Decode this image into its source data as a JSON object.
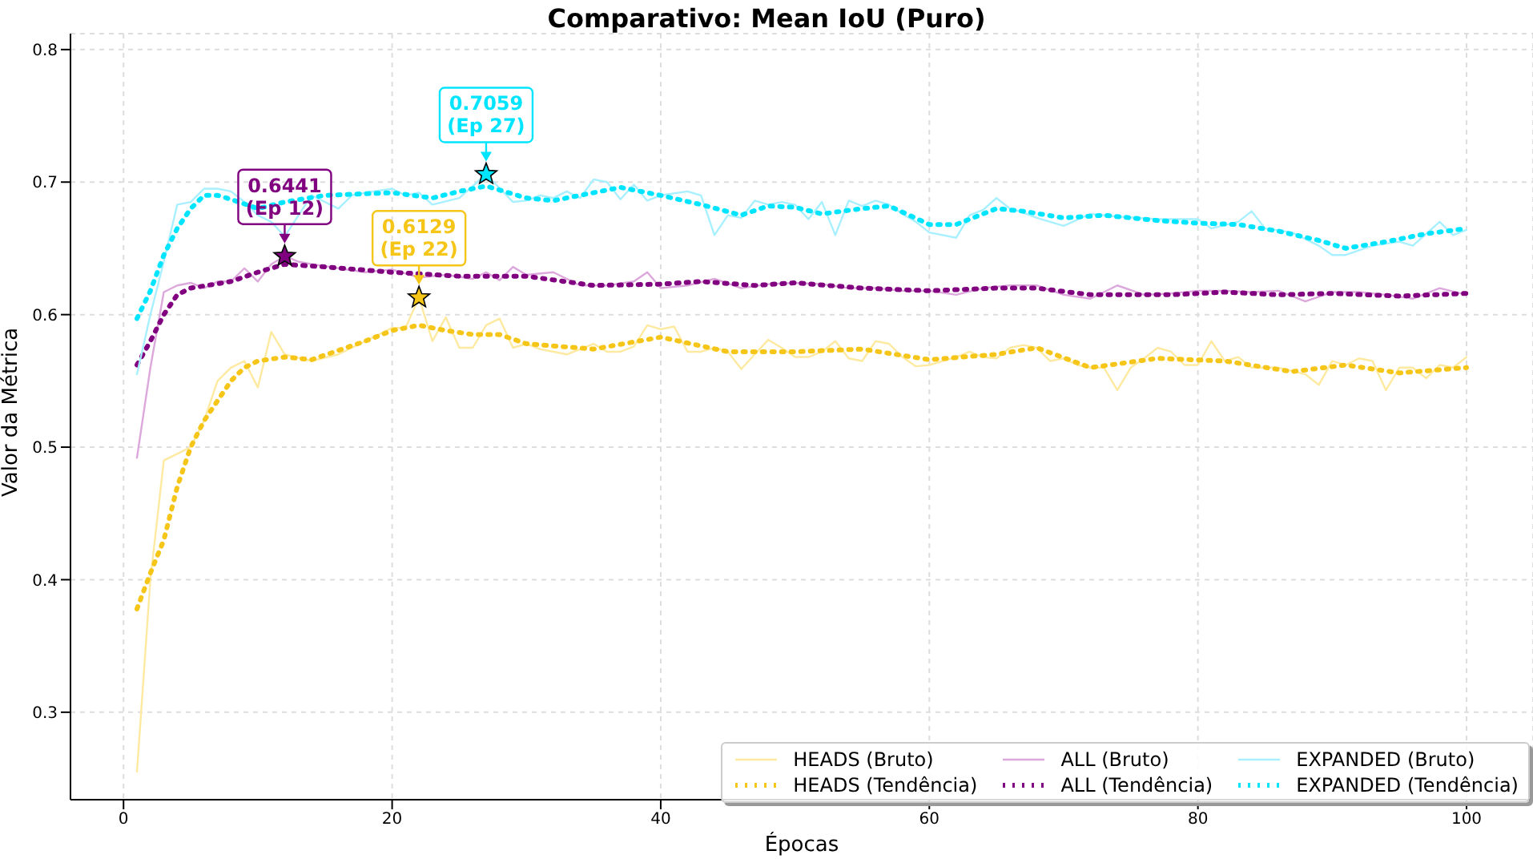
{
  "chart_data": {
    "type": "line",
    "title": "Comparativo: Mean IoU (Puro)",
    "xlabel": "Épocas",
    "ylabel": "Valor da Métrica",
    "xlim": [
      -3.95,
      104.95
    ],
    "ylim": [
      0.234,
      0.812
    ],
    "xticks": [
      0,
      20,
      40,
      60,
      80,
      100
    ],
    "yticks": [
      0.3,
      0.4,
      0.5,
      0.6,
      0.7,
      0.8
    ],
    "grid": true,
    "legend": "bottom right",
    "marker": "none",
    "series": [
      {
        "name": "HEADS (Bruto)",
        "color": "#fde9a0",
        "line_style": "solid",
        "x": [
          1,
          2,
          3,
          4,
          5,
          6,
          7,
          8,
          9,
          10,
          11,
          12,
          14,
          16,
          18,
          20,
          21,
          22,
          23,
          24,
          25,
          26,
          27,
          28,
          29,
          30,
          31,
          33,
          35,
          36,
          37,
          38,
          39,
          40,
          41,
          42,
          43,
          44,
          45,
          46,
          47,
          48,
          49,
          50,
          51,
          52,
          53,
          54,
          55,
          56,
          57,
          58,
          59,
          60,
          62,
          63,
          64,
          65,
          66,
          67,
          68,
          69,
          70,
          71,
          72,
          73,
          74,
          75,
          76,
          77,
          78,
          79,
          80,
          81,
          82,
          83,
          84,
          86,
          88,
          89,
          90,
          91,
          92,
          93,
          94,
          95,
          96,
          97,
          98,
          99,
          100
        ],
        "values": [
          0.255,
          0.4,
          0.49,
          0.495,
          0.5,
          0.52,
          0.55,
          0.56,
          0.565,
          0.545,
          0.587,
          0.57,
          0.565,
          0.57,
          0.58,
          0.59,
          0.59,
          0.6129,
          0.58,
          0.598,
          0.575,
          0.575,
          0.592,
          0.597,
          0.575,
          0.578,
          0.574,
          0.57,
          0.578,
          0.572,
          0.572,
          0.576,
          0.592,
          0.589,
          0.591,
          0.572,
          0.572,
          0.575,
          0.572,
          0.559,
          0.57,
          0.581,
          0.575,
          0.568,
          0.568,
          0.572,
          0.58,
          0.567,
          0.565,
          0.58,
          0.578,
          0.568,
          0.561,
          0.562,
          0.568,
          0.572,
          0.568,
          0.567,
          0.575,
          0.577,
          0.575,
          0.565,
          0.567,
          0.562,
          0.56,
          0.56,
          0.543,
          0.56,
          0.567,
          0.575,
          0.572,
          0.562,
          0.562,
          0.58,
          0.565,
          0.568,
          0.56,
          0.56,
          0.555,
          0.547,
          0.565,
          0.562,
          0.567,
          0.565,
          0.543,
          0.56,
          0.56,
          0.552,
          0.562,
          0.56,
          0.568
        ]
      },
      {
        "name": "HEADS (Tendência)",
        "color": "#f5c518",
        "line_style": "dotted",
        "x": [
          1,
          2,
          3,
          4,
          5,
          6,
          7,
          8,
          9,
          10,
          12,
          14,
          16,
          18,
          20,
          22,
          24,
          26,
          28,
          30,
          35,
          40,
          45,
          50,
          55,
          60,
          65,
          68,
          72,
          77,
          82,
          87,
          91,
          95,
          100
        ],
        "values": [
          0.378,
          0.405,
          0.43,
          0.47,
          0.5,
          0.52,
          0.535,
          0.55,
          0.56,
          0.565,
          0.568,
          0.566,
          0.573,
          0.58,
          0.588,
          0.592,
          0.588,
          0.585,
          0.585,
          0.578,
          0.574,
          0.583,
          0.572,
          0.572,
          0.574,
          0.566,
          0.57,
          0.575,
          0.56,
          0.567,
          0.565,
          0.557,
          0.562,
          0.556,
          0.56
        ]
      },
      {
        "name": "ALL (Bruto)",
        "color": "#dca8dc",
        "line_style": "solid",
        "x": [
          1,
          2,
          3,
          4,
          5,
          6,
          7,
          8,
          9,
          10,
          11,
          12,
          13,
          14,
          16,
          18,
          20,
          22,
          24,
          26,
          27,
          28,
          29,
          30,
          32,
          34,
          36,
          38,
          39,
          40,
          42,
          44,
          46,
          48,
          50,
          52,
          54,
          56,
          58,
          60,
          62,
          64,
          66,
          68,
          70,
          72,
          74,
          76,
          78,
          80,
          82,
          84,
          86,
          88,
          90,
          92,
          94,
          96,
          98,
          100
        ],
        "values": [
          0.492,
          0.56,
          0.617,
          0.622,
          0.624,
          0.62,
          0.625,
          0.625,
          0.635,
          0.625,
          0.638,
          0.6441,
          0.64,
          0.638,
          0.635,
          0.632,
          0.634,
          0.628,
          0.63,
          0.627,
          0.632,
          0.626,
          0.636,
          0.63,
          0.632,
          0.622,
          0.622,
          0.625,
          0.632,
          0.62,
          0.622,
          0.627,
          0.62,
          0.623,
          0.624,
          0.623,
          0.62,
          0.62,
          0.618,
          0.618,
          0.615,
          0.62,
          0.622,
          0.622,
          0.615,
          0.612,
          0.622,
          0.615,
          0.616,
          0.618,
          0.618,
          0.617,
          0.618,
          0.61,
          0.617,
          0.617,
          0.615,
          0.612,
          0.62,
          0.615
        ]
      },
      {
        "name": "ALL (Tendência)",
        "color": "#800080",
        "line_style": "dotted",
        "x": [
          1,
          2,
          3,
          4,
          5,
          8,
          10,
          12,
          15,
          20,
          25,
          30,
          35,
          40,
          43,
          47,
          50,
          55,
          60,
          65,
          68,
          72,
          78,
          82,
          86,
          90,
          95,
          100
        ],
        "values": [
          0.562,
          0.58,
          0.6,
          0.615,
          0.62,
          0.625,
          0.632,
          0.638,
          0.636,
          0.632,
          0.629,
          0.629,
          0.622,
          0.623,
          0.625,
          0.622,
          0.624,
          0.62,
          0.618,
          0.62,
          0.62,
          0.615,
          0.615,
          0.617,
          0.615,
          0.616,
          0.614,
          0.616
        ]
      },
      {
        "name": "EXPANDED (Bruto)",
        "color": "#a8f0ff",
        "line_style": "solid",
        "x": [
          1,
          2,
          3,
          4,
          5,
          6,
          7,
          8,
          9,
          10,
          11,
          12,
          14,
          16,
          17,
          18,
          20,
          21,
          22,
          23,
          25,
          27,
          29,
          30,
          31,
          32,
          33,
          34,
          35,
          36,
          37,
          38,
          39,
          40,
          42,
          43,
          44,
          45,
          46,
          47,
          48,
          49,
          50,
          51,
          52,
          53,
          54,
          55,
          56,
          57,
          58,
          59,
          60,
          61,
          62,
          63,
          64,
          65,
          66,
          67,
          68,
          70,
          72,
          74,
          77,
          80,
          81,
          83,
          84,
          85,
          87,
          89,
          90,
          91,
          93,
          95,
          96,
          98,
          99,
          100
        ],
        "values": [
          0.555,
          0.6,
          0.64,
          0.683,
          0.685,
          0.695,
          0.695,
          0.693,
          0.685,
          0.675,
          0.67,
          0.659,
          0.69,
          0.68,
          0.69,
          0.692,
          0.695,
          0.69,
          0.692,
          0.683,
          0.688,
          0.7059,
          0.685,
          0.686,
          0.69,
          0.688,
          0.693,
          0.688,
          0.702,
          0.7,
          0.687,
          0.698,
          0.686,
          0.69,
          0.693,
          0.69,
          0.66,
          0.675,
          0.673,
          0.686,
          0.683,
          0.685,
          0.683,
          0.672,
          0.685,
          0.66,
          0.686,
          0.682,
          0.686,
          0.683,
          0.676,
          0.67,
          0.662,
          0.66,
          0.658,
          0.675,
          0.679,
          0.688,
          0.68,
          0.677,
          0.673,
          0.667,
          0.676,
          0.674,
          0.672,
          0.672,
          0.665,
          0.67,
          0.678,
          0.665,
          0.662,
          0.652,
          0.645,
          0.645,
          0.652,
          0.655,
          0.652,
          0.67,
          0.66,
          0.664
        ]
      },
      {
        "name": "EXPANDED (Tendência)",
        "color": "#00e5ff",
        "line_style": "dotted",
        "x": [
          1,
          2,
          3,
          4,
          5,
          6,
          7,
          8,
          10,
          12,
          15,
          20,
          23,
          25,
          27,
          30,
          32,
          35,
          37,
          40,
          43,
          46,
          48,
          50,
          52,
          55,
          57,
          60,
          62,
          65,
          67,
          70,
          73,
          77,
          80,
          83,
          86,
          89,
          91,
          94,
          97,
          100
        ],
        "values": [
          0.597,
          0.618,
          0.645,
          0.665,
          0.68,
          0.69,
          0.69,
          0.687,
          0.68,
          0.685,
          0.69,
          0.692,
          0.688,
          0.693,
          0.697,
          0.688,
          0.686,
          0.692,
          0.696,
          0.69,
          0.683,
          0.675,
          0.682,
          0.681,
          0.676,
          0.68,
          0.682,
          0.668,
          0.668,
          0.68,
          0.678,
          0.673,
          0.675,
          0.671,
          0.669,
          0.668,
          0.663,
          0.656,
          0.65,
          0.655,
          0.661,
          0.665
        ]
      }
    ],
    "annotations": [
      {
        "text": "0.6441\n(Ep 12)",
        "x": 12,
        "y": 0.6441
      },
      {
        "text": "0.6129\n(Ep 22)",
        "x": 22,
        "y": 0.6129
      },
      {
        "text": "0.7059\n(Ep 27)",
        "x": 27,
        "y": 0.7059
      }
    ]
  }
}
